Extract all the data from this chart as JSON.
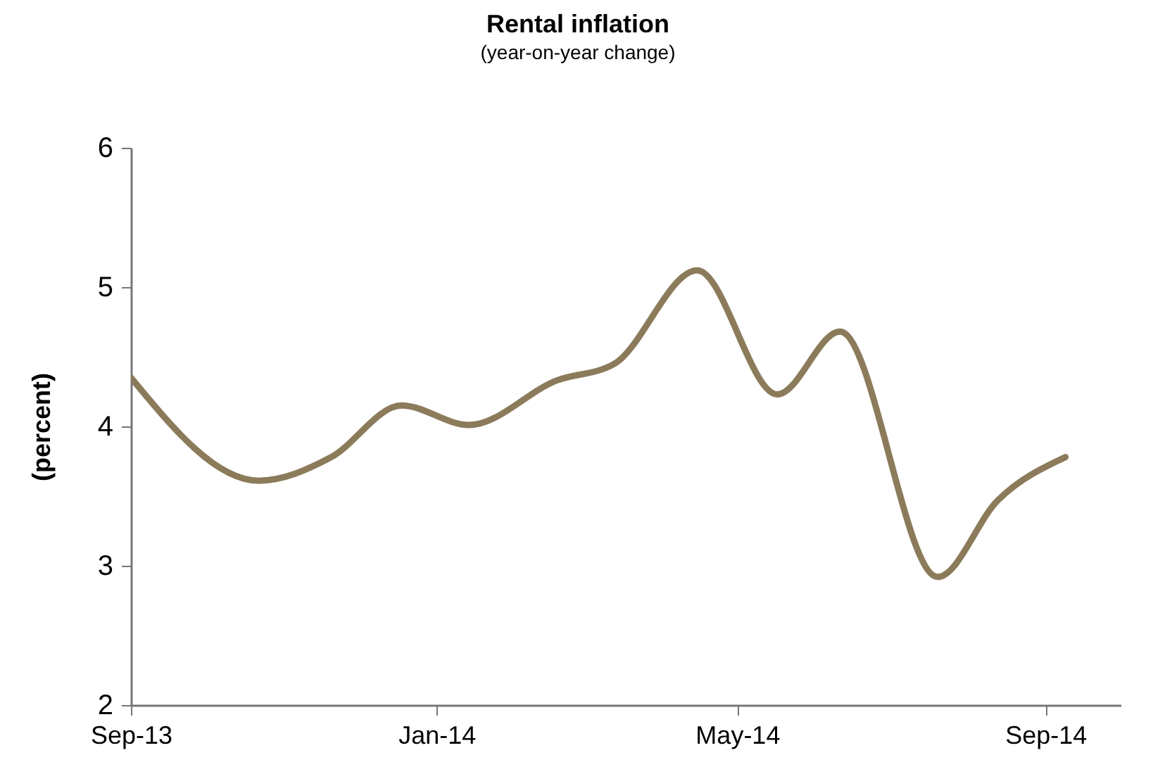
{
  "chart_data": {
    "type": "line",
    "title": "Rental inflation",
    "subtitle": "(year-on-year change)",
    "ylabel": "(percent)",
    "x": [
      "2013-09-01",
      "2013-10-22",
      "2013-11-20",
      "2013-12-18",
      "2014-01-14",
      "2014-02-18",
      "2014-03-13",
      "2014-04-15",
      "2014-05-17",
      "2014-06-11",
      "2014-07-20",
      "2014-08-13",
      "2014-09-09"
    ],
    "series": [
      {
        "color": "#8c7b5b",
        "values": [
          4.35,
          3.61,
          3.78,
          4.15,
          4.01,
          4.33,
          4.45,
          5.12,
          4.23,
          4.68,
          2.92,
          3.47,
          3.78
        ]
      }
    ],
    "xlim": [
      "2013-09-01",
      "2014-10-01"
    ],
    "xticks": [
      {
        "value": "2013-09-01",
        "label": "Sep-13"
      },
      {
        "value": "2014-01-01",
        "label": "Jan-14"
      },
      {
        "value": "2014-05-01",
        "label": "May-14"
      },
      {
        "value": "2014-09-01",
        "label": "Sep-14"
      }
    ],
    "ylim": [
      2,
      6
    ],
    "yticks": [
      2,
      3,
      4,
      5,
      6
    ],
    "grid": false,
    "marker": "none",
    "line_style": "solid"
  }
}
